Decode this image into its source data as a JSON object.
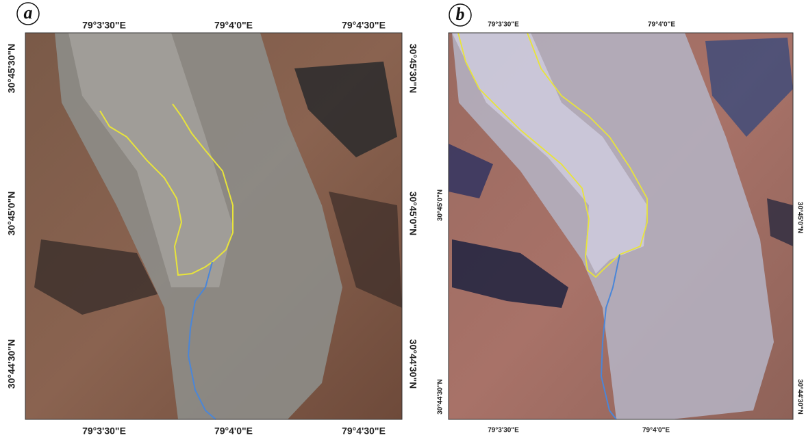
{
  "panels": [
    {
      "label": "a",
      "top": [
        "79°3'30\"E",
        "79°4'0\"E",
        "79°4'30\"E"
      ],
      "bottom": [
        "79°3'30\"E",
        "79°4'0\"E",
        "79°4'30\"E"
      ],
      "left": [
        "30°45'30\"N",
        "30°45'0\"N",
        "30°44'30\"N"
      ],
      "right": [
        "30°45'30\"N",
        "30°45'0\"N",
        "30°44'30\"N"
      ]
    },
    {
      "label": "b",
      "top": [
        "79°3'30\"E",
        "79°4'0\"E"
      ],
      "bottom": [
        "79°3'30\"E",
        "79°4'0\"E"
      ],
      "left": [
        "30°45'0\"N",
        "30°44'30\"N"
      ],
      "right": [
        "30°45'0\"N",
        "30°44'30\"N"
      ]
    }
  ]
}
